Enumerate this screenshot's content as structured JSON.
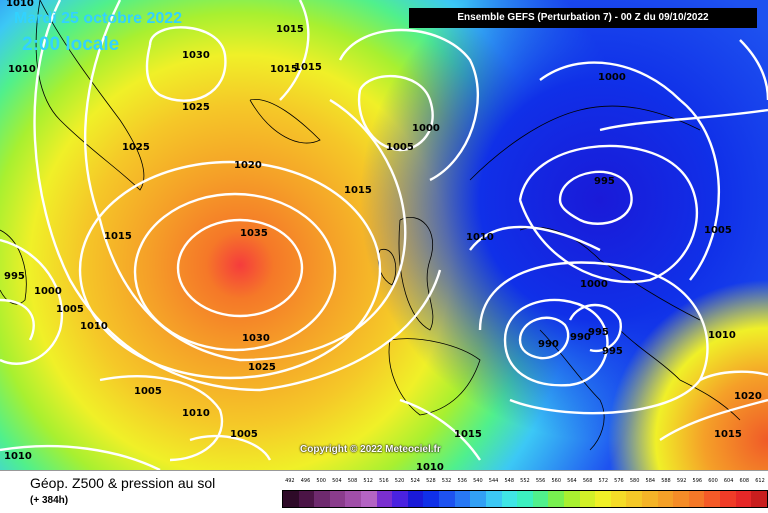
{
  "header": {
    "date": "Mardi 25 octobre 2022",
    "time": "2:00 locale",
    "run_info": "Ensemble GEFS (Perturbation 7) - 00 Z du 09/10/2022"
  },
  "copyright": "Copyright © 2022 Meteociel.fr",
  "footer": {
    "title": "Géop. Z500 & pression au sol",
    "subtitle": "(+ 384h)"
  },
  "isobar_labels": [
    {
      "text": "1010"
    },
    {
      "text": "1015"
    },
    {
      "text": "1030"
    },
    {
      "text": "1010"
    },
    {
      "text": "1015"
    },
    {
      "text": "1015"
    },
    {
      "text": "1025"
    },
    {
      "text": "1025"
    },
    {
      "text": "1000"
    },
    {
      "text": "1005"
    },
    {
      "text": "1020"
    },
    {
      "text": "1015"
    },
    {
      "text": "1035"
    },
    {
      "text": "1015"
    },
    {
      "text": "995"
    },
    {
      "text": "1000"
    },
    {
      "text": "1005"
    },
    {
      "text": "1010"
    },
    {
      "text": "1030"
    },
    {
      "text": "1025"
    },
    {
      "text": "1005"
    },
    {
      "text": "1010"
    },
    {
      "text": "1005"
    },
    {
      "text": "1010"
    },
    {
      "text": "1010"
    },
    {
      "text": "1000"
    },
    {
      "text": "995"
    },
    {
      "text": "1005"
    },
    {
      "text": "1000"
    },
    {
      "text": "990"
    },
    {
      "text": "990"
    },
    {
      "text": "995"
    },
    {
      "text": "995"
    },
    {
      "text": "1010"
    },
    {
      "text": "1020"
    },
    {
      "text": "1015"
    },
    {
      "text": "1015"
    },
    {
      "text": "1010"
    }
  ],
  "legend": {
    "colors": [
      "#2e0a28",
      "#4b1446",
      "#6e2a6e",
      "#8a3c8c",
      "#a04ea8",
      "#b464c4",
      "#7a2fd0",
      "#4a22e0",
      "#1a1ad8",
      "#1030e8",
      "#1e52f0",
      "#2878f5",
      "#32a0f5",
      "#3cc8f5",
      "#40e6e6",
      "#3cf0c0",
      "#50f08c",
      "#78f050",
      "#a8f030",
      "#d2f028",
      "#f0f028",
      "#f5dc28",
      "#f5c828",
      "#f5b428",
      "#f5a028",
      "#f58c28",
      "#f57828",
      "#f55a28",
      "#f03c28",
      "#e62828",
      "#c81e1e",
      "#a01414",
      "#780a0a",
      "#500505",
      "#280000",
      "#000000"
    ],
    "labels": [
      "492",
      "496",
      "500",
      "504",
      "508",
      "512",
      "516",
      "520",
      "524",
      "528",
      "532",
      "536",
      "540",
      "544",
      "548",
      "552",
      "556",
      "560",
      "564",
      "568",
      "572",
      "576",
      "580",
      "584",
      "588",
      "592",
      "596",
      "600",
      "604",
      "608",
      "612"
    ]
  }
}
